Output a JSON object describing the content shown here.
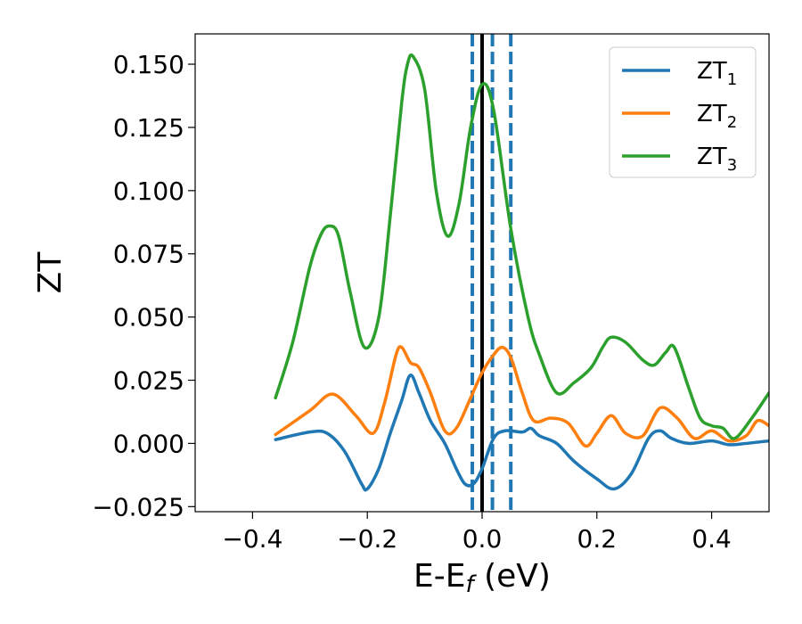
{
  "chart_data": {
    "type": "line",
    "title": "",
    "xlabel": "E-E",
    "xlabel_sub": "f",
    "xlabel_unit": " (eV)",
    "ylabel": "ZT",
    "xlim": [
      -0.5,
      0.5
    ],
    "ylim": [
      -0.027,
      0.162
    ],
    "xticks": [
      -0.4,
      -0.2,
      0.0,
      0.2,
      0.4
    ],
    "xtick_labels": [
      "−0.4",
      "−0.2",
      "0.0",
      "0.2",
      "0.4"
    ],
    "yticks": [
      -0.025,
      0.0,
      0.025,
      0.05,
      0.075,
      0.1,
      0.125,
      0.15
    ],
    "ytick_labels": [
      "−0.025",
      "0.000",
      "0.025",
      "0.050",
      "0.075",
      "0.100",
      "0.125",
      "0.150"
    ],
    "grid": false,
    "legend_placement": "top-right",
    "vlines": [
      {
        "x": 0.0,
        "style": "solid",
        "color": "#000000"
      },
      {
        "x": -0.017,
        "style": "dashed",
        "color": "#1f77b4"
      },
      {
        "x": 0.018,
        "style": "dashed",
        "color": "#1f77b4"
      },
      {
        "x": 0.05,
        "style": "dashed",
        "color": "#1f77b4"
      }
    ],
    "series": [
      {
        "name": "ZT",
        "name_sub": "1",
        "color": "#1f77b4",
        "x": [
          -0.36,
          -0.3,
          -0.27,
          -0.24,
          -0.21,
          -0.2,
          -0.18,
          -0.16,
          -0.14,
          -0.125,
          -0.11,
          -0.09,
          -0.065,
          -0.045,
          -0.03,
          -0.015,
          0.0,
          0.02,
          0.04,
          0.07,
          0.085,
          0.1,
          0.13,
          0.16,
          0.2,
          0.23,
          0.26,
          0.29,
          0.31,
          0.33,
          0.36,
          0.4,
          0.43,
          0.46,
          0.5
        ],
        "y": [
          0.0015,
          0.0045,
          0.004,
          -0.003,
          -0.016,
          -0.018,
          -0.01,
          0.004,
          0.017,
          0.027,
          0.02,
          0.009,
          0.0,
          -0.01,
          -0.016,
          -0.016,
          -0.01,
          0.002,
          0.005,
          0.0045,
          0.006,
          0.003,
          0.0,
          -0.007,
          -0.014,
          -0.018,
          -0.012,
          0.002,
          0.005,
          0.002,
          0.0,
          0.001,
          -0.0005,
          0.0,
          0.001
        ]
      },
      {
        "name": "ZT",
        "name_sub": "2",
        "color": "#ff7f0e",
        "x": [
          -0.36,
          -0.3,
          -0.26,
          -0.22,
          -0.19,
          -0.17,
          -0.15,
          -0.14,
          -0.125,
          -0.11,
          -0.09,
          -0.065,
          -0.045,
          -0.02,
          0.0,
          0.02,
          0.035,
          0.05,
          0.07,
          0.09,
          0.12,
          0.15,
          0.18,
          0.2,
          0.225,
          0.25,
          0.28,
          0.31,
          0.34,
          0.37,
          0.4,
          0.43,
          0.46,
          0.48,
          0.5
        ],
        "y": [
          0.0035,
          0.013,
          0.0195,
          0.011,
          0.004,
          0.016,
          0.035,
          0.038,
          0.032,
          0.03,
          0.02,
          0.005,
          0.006,
          0.018,
          0.028,
          0.035,
          0.038,
          0.034,
          0.02,
          0.009,
          0.01,
          0.008,
          -0.001,
          0.004,
          0.011,
          0.004,
          0.003,
          0.014,
          0.01,
          0.002,
          0.005,
          0.001,
          0.003,
          0.009,
          0.007
        ]
      },
      {
        "name": "ZT",
        "name_sub": "3",
        "color": "#2ca02c",
        "x": [
          -0.36,
          -0.33,
          -0.3,
          -0.28,
          -0.265,
          -0.25,
          -0.23,
          -0.205,
          -0.18,
          -0.16,
          -0.14,
          -0.13,
          -0.12,
          -0.1,
          -0.08,
          -0.06,
          -0.04,
          -0.02,
          0.0,
          0.02,
          0.05,
          0.08,
          0.1,
          0.13,
          0.16,
          0.19,
          0.21,
          0.225,
          0.25,
          0.28,
          0.3,
          0.32,
          0.335,
          0.36,
          0.38,
          0.4,
          0.42,
          0.44,
          0.47,
          0.5
        ],
        "y": [
          0.018,
          0.04,
          0.07,
          0.083,
          0.086,
          0.082,
          0.06,
          0.038,
          0.05,
          0.09,
          0.135,
          0.15,
          0.153,
          0.14,
          0.1,
          0.082,
          0.095,
          0.125,
          0.142,
          0.132,
          0.085,
          0.05,
          0.035,
          0.02,
          0.024,
          0.03,
          0.038,
          0.042,
          0.04,
          0.033,
          0.031,
          0.036,
          0.038,
          0.022,
          0.01,
          0.007,
          0.006,
          0.002,
          0.01,
          0.02
        ]
      }
    ]
  }
}
